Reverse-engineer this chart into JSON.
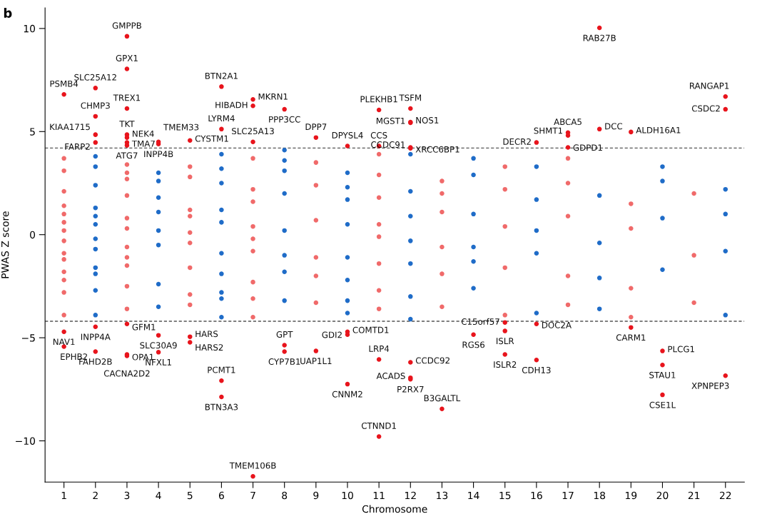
{
  "chart_data": {
    "type": "scatter",
    "xlabel": "Chromosome",
    "ylabel": "PWAS Z score",
    "categories": [
      "1",
      "2",
      "3",
      "4",
      "5",
      "6",
      "7",
      "8",
      "9",
      "10",
      "11",
      "12",
      "13",
      "14",
      "15",
      "16",
      "17",
      "18",
      "19",
      "20",
      "21",
      "22"
    ],
    "ylim": [
      -12,
      11
    ],
    "yticks": [
      {
        "value": -10,
        "label": "−10"
      },
      {
        "value": -5,
        "label": "−5"
      },
      0,
      5,
      10
    ],
    "grid": false,
    "legend": false,
    "marker": "circle",
    "ref_lines": [
      {
        "axis": "y",
        "value": 4.2,
        "line_style": "dashed",
        "color": "#555555"
      },
      {
        "axis": "y",
        "value": -4.2,
        "line_style": "dashed",
        "color": "#555555"
      }
    ],
    "series": [
      {
        "color": "#f06a6a",
        "x": [
          "1",
          "1",
          "1",
          "1",
          "1",
          "1",
          "1",
          "1",
          "1",
          "1",
          "1",
          "1",
          "1",
          "1",
          "3",
          "3",
          "3",
          "3",
          "3",
          "3",
          "3",
          "3",
          "3",
          "3",
          "3",
          "5",
          "5",
          "5",
          "5",
          "5",
          "5",
          "5",
          "5",
          "5",
          "7",
          "7",
          "7",
          "7",
          "7",
          "7",
          "7",
          "7",
          "7",
          "9",
          "9",
          "9",
          "9",
          "9",
          "9",
          "11",
          "11",
          "11",
          "11",
          "11",
          "11",
          "11",
          "11",
          "13",
          "13",
          "13",
          "13",
          "13",
          "13",
          "15",
          "15",
          "15",
          "15",
          "15",
          "17",
          "17",
          "17",
          "17",
          "17",
          "19",
          "19",
          "19",
          "19",
          "21",
          "21",
          "21"
        ],
        "values": [
          -1.2,
          2.1,
          -2.8,
          0.6,
          3.1,
          -0.9,
          1.4,
          -3.9,
          0.2,
          3.7,
          -1.8,
          -0.3,
          -2.2,
          1.0,
          0.8,
          -2.5,
          3.4,
          -0.6,
          1.9,
          -3.6,
          0.3,
          2.7,
          -1.5,
          -1.1,
          3.0,
          -0.4,
          2.8,
          -2.9,
          1.2,
          -1.6,
          3.3,
          -3.4,
          0.9,
          0.1,
          1.6,
          -3.1,
          3.7,
          -0.8,
          2.2,
          -2.3,
          0.4,
          -4.0,
          -0.2,
          -1.1,
          2.4,
          -3.3,
          0.7,
          3.5,
          -2.0,
          2.9,
          -1.4,
          3.9,
          -3.6,
          0.5,
          -2.7,
          1.8,
          -0.1,
          -0.6,
          2.6,
          -3.5,
          1.1,
          -1.9,
          2.0,
          2.2,
          -3.9,
          0.4,
          3.3,
          -1.6,
          3.7,
          -2.0,
          0.9,
          -3.4,
          2.5,
          -2.6,
          1.5,
          -4.0,
          0.3,
          2.0,
          -1.0,
          -3.3
        ]
      },
      {
        "color": "#1f6cc8",
        "x": [
          "2",
          "2",
          "2",
          "2",
          "2",
          "2",
          "2",
          "2",
          "2",
          "2",
          "2",
          "2",
          "4",
          "4",
          "4",
          "4",
          "4",
          "4",
          "4",
          "4",
          "6",
          "6",
          "6",
          "6",
          "6",
          "6",
          "6",
          "6",
          "6",
          "6",
          "8",
          "8",
          "8",
          "8",
          "8",
          "8",
          "8",
          "8",
          "10",
          "10",
          "10",
          "10",
          "10",
          "10",
          "10",
          "10",
          "12",
          "12",
          "12",
          "12",
          "12",
          "12",
          "12",
          "14",
          "14",
          "14",
          "14",
          "14",
          "14",
          "16",
          "16",
          "16",
          "16",
          "16",
          "18",
          "18",
          "18",
          "18",
          "20",
          "20",
          "20",
          "20",
          "22",
          "22",
          "22",
          "22"
        ],
        "values": [
          3.3,
          -1.6,
          0.9,
          -3.9,
          2.4,
          -0.7,
          3.8,
          -2.7,
          1.3,
          -1.9,
          -0.2,
          0.5,
          1.1,
          -2.4,
          3.0,
          -0.5,
          1.8,
          -3.5,
          0.2,
          2.6,
          -3.1,
          3.9,
          0.6,
          -1.9,
          2.5,
          -4.0,
          1.2,
          -0.9,
          -2.8,
          3.2,
          3.1,
          -1.0,
          4.1,
          0.2,
          -3.2,
          2.0,
          -1.8,
          3.6,
          -2.2,
          1.7,
          -3.8,
          0.5,
          3.0,
          -1.1,
          2.3,
          -3.2,
          0.9,
          -3.0,
          3.9,
          -1.4,
          2.1,
          -4.1,
          -0.3,
          -1.3,
          2.9,
          -2.6,
          1.0,
          3.7,
          -0.6,
          3.3,
          -0.9,
          -3.8,
          1.7,
          0.2,
          -2.1,
          1.9,
          -0.4,
          -3.6,
          2.6,
          -1.7,
          0.8,
          3.3,
          -0.8,
          2.2,
          -3.9,
          1.0
        ]
      },
      {
        "color": "#e8141c",
        "x": [
          "1",
          "1",
          "1",
          "2",
          "2",
          "2",
          "2",
          "2",
          "2",
          "3",
          "3",
          "3",
          "3",
          "3",
          "3",
          "3",
          "3",
          "3",
          "3",
          "4",
          "4",
          "4",
          "4",
          "5",
          "5",
          "5",
          "6",
          "6",
          "6",
          "6",
          "7",
          "7",
          "7",
          "7",
          "8",
          "8",
          "8",
          "9",
          "9",
          "10",
          "10",
          "10",
          "10",
          "11",
          "11",
          "11",
          "11",
          "12",
          "12",
          "12",
          "12",
          "12",
          "12",
          "12",
          "12",
          "13",
          "14",
          "15",
          "15",
          "15",
          "16",
          "16",
          "16",
          "17",
          "17",
          "17",
          "18",
          "18",
          "19",
          "19",
          "20",
          "20",
          "20",
          "22",
          "22",
          "22"
        ],
        "values": [
          6.8,
          -5.43,
          -4.71,
          7.11,
          5.74,
          4.85,
          4.47,
          -4.47,
          -5.67,
          9.62,
          8.04,
          6.12,
          4.85,
          4.71,
          4.47,
          4.33,
          -5.81,
          -5.88,
          -4.33,
          4.5,
          4.4,
          -4.88,
          -5.7,
          4.57,
          -4.95,
          -5.22,
          7.18,
          5.12,
          -7.08,
          -7.87,
          6.25,
          6.56,
          4.5,
          -11.72,
          6.08,
          -5.36,
          -5.67,
          4.71,
          -5.64,
          4.3,
          -4.85,
          -4.71,
          -7.25,
          6.05,
          4.3,
          -6.05,
          -9.79,
          6.12,
          5.43,
          5.46,
          4.23,
          4.19,
          -6.19,
          -6.94,
          -7.01,
          -8.45,
          -4.85,
          -4.26,
          -4.67,
          -5.81,
          4.47,
          -4.33,
          -6.08,
          4.95,
          4.81,
          4.23,
          10.03,
          5.12,
          4.98,
          -4.5,
          -5.64,
          -6.32,
          -7.77,
          6.7,
          6.08,
          -6.84
        ]
      }
    ],
    "annotations": [
      "b",
      {
        "text": "PSMB4",
        "x": "1",
        "y": 6.8
      },
      {
        "text": "EPHB2",
        "x": "1",
        "y": -5.43
      },
      {
        "text": "NAV1",
        "x": "1",
        "y": -4.71
      },
      {
        "text": "SLC25A12",
        "x": "2",
        "y": 7.11
      },
      {
        "text": "CHMP3",
        "x": "2",
        "y": 5.74
      },
      {
        "text": "KIAA1715",
        "x": "2",
        "y": 4.85
      },
      {
        "text": "FARP2",
        "x": "2",
        "y": 4.47
      },
      {
        "text": "INPP4A",
        "x": "2",
        "y": -4.47
      },
      {
        "text": "FAHD2B",
        "x": "2",
        "y": -5.67
      },
      {
        "text": "GMPPB",
        "x": "3",
        "y": 9.62
      },
      {
        "text": "GPX1",
        "x": "3",
        "y": 8.04
      },
      {
        "text": "TREX1",
        "x": "3",
        "y": 6.12
      },
      {
        "text": "TKT",
        "x": "3",
        "y": 4.85
      },
      {
        "text": "NEK4",
        "x": "3",
        "y": 4.71
      },
      {
        "text": "TMA7",
        "x": "3",
        "y": 4.47
      },
      {
        "text": "ATG7",
        "x": "3",
        "y": 4.33
      },
      {
        "text": "CACNA2D2",
        "x": "3",
        "y": -5.81
      },
      {
        "text": "OPA1",
        "x": "3",
        "y": -5.88
      },
      {
        "text": "GFM1",
        "x": "3",
        "y": -4.33
      },
      {
        "text": "TMEM33",
        "x": "4",
        "y": 4.5
      },
      {
        "text": "INPP4B",
        "x": "4",
        "y": 4.4
      },
      {
        "text": "SLC30A9",
        "x": "4",
        "y": -4.88
      },
      {
        "text": "NFXL1",
        "x": "4",
        "y": -5.7
      },
      {
        "text": "CYSTM1",
        "x": "5",
        "y": 4.57
      },
      {
        "text": "HARS",
        "x": "5",
        "y": -4.95
      },
      {
        "text": "HARS2",
        "x": "5",
        "y": -5.22
      },
      {
        "text": "BTN2A1",
        "x": "6",
        "y": 7.18
      },
      {
        "text": "LYRM4",
        "x": "6",
        "y": 5.12
      },
      {
        "text": "PCMT1",
        "x": "6",
        "y": -7.08
      },
      {
        "text": "BTN3A3",
        "x": "6",
        "y": -7.87
      },
      {
        "text": "HIBADH",
        "x": "7",
        "y": 6.25
      },
      {
        "text": "MKRN1",
        "x": "7",
        "y": 6.56
      },
      {
        "text": "SLC25A13",
        "x": "7",
        "y": 4.5
      },
      {
        "text": "TMEM106B",
        "x": "7",
        "y": -11.72
      },
      {
        "text": "PPP3CC",
        "x": "8",
        "y": 6.08
      },
      {
        "text": "GPT",
        "x": "8",
        "y": -5.36
      },
      {
        "text": "CYP7B1",
        "x": "8",
        "y": -5.67
      },
      {
        "text": "DPP7",
        "x": "9",
        "y": 4.71
      },
      {
        "text": "UAP1L1",
        "x": "9",
        "y": -5.64
      },
      {
        "text": "DPYSL4",
        "x": "10",
        "y": 4.3
      },
      {
        "text": "GDI2",
        "x": "10",
        "y": -4.85
      },
      {
        "text": "COMTD1",
        "x": "10",
        "y": -4.71
      },
      {
        "text": "CNNM2",
        "x": "10",
        "y": -7.25
      },
      {
        "text": "PLEKHB1",
        "x": "11",
        "y": 6.05
      },
      {
        "text": "CCS",
        "x": "11",
        "y": 4.3
      },
      {
        "text": "LRP4",
        "x": "11",
        "y": -6.05
      },
      {
        "text": "CTNND1",
        "x": "11",
        "y": -9.79
      },
      {
        "text": "TSFM",
        "x": "12",
        "y": 6.12
      },
      {
        "text": "MGST1",
        "x": "12",
        "y": 5.43
      },
      {
        "text": "NOS1",
        "x": "12",
        "y": 5.46
      },
      {
        "text": "CCDC91",
        "x": "12",
        "y": 4.23
      },
      {
        "text": "XRCC6BP1",
        "x": "12",
        "y": 4.19
      },
      {
        "text": "CCDC92",
        "x": "12",
        "y": -6.19
      },
      {
        "text": "ACADS",
        "x": "12",
        "y": -6.94
      },
      {
        "text": "P2RX7",
        "x": "12",
        "y": -7.01
      },
      {
        "text": "B3GALTL",
        "x": "13",
        "y": -8.45
      },
      {
        "text": "RGS6",
        "x": "14",
        "y": -4.85
      },
      {
        "text": "C15orf57",
        "x": "15",
        "y": -4.26
      },
      {
        "text": "ISLR",
        "x": "15",
        "y": -4.67
      },
      {
        "text": "ISLR2",
        "x": "15",
        "y": -5.81
      },
      {
        "text": "DECR2",
        "x": "16",
        "y": 4.47
      },
      {
        "text": "DOC2A",
        "x": "16",
        "y": -4.33
      },
      {
        "text": "CDH13",
        "x": "16",
        "y": -6.08
      },
      {
        "text": "ABCA5",
        "x": "17",
        "y": 4.95
      },
      {
        "text": "SHMT1",
        "x": "17",
        "y": 4.81
      },
      {
        "text": "GDPD1",
        "x": "17",
        "y": 4.23
      },
      {
        "text": "RAB27B",
        "x": "18",
        "y": 10.03
      },
      {
        "text": "DCC",
        "x": "18",
        "y": 5.12
      },
      {
        "text": "ALDH16A1",
        "x": "19",
        "y": 4.98
      },
      {
        "text": "CARM1",
        "x": "19",
        "y": -4.5
      },
      {
        "text": "PLCG1",
        "x": "20",
        "y": -5.64
      },
      {
        "text": "STAU1",
        "x": "20",
        "y": -6.32
      },
      {
        "text": "CSE1L",
        "x": "20",
        "y": -7.77
      },
      {
        "text": "RANGAP1",
        "x": "22",
        "y": 6.7
      },
      {
        "text": "CSDC2",
        "x": "22",
        "y": 6.08
      },
      {
        "text": "XPNPEP3",
        "x": "22",
        "y": -6.84
      }
    ]
  }
}
